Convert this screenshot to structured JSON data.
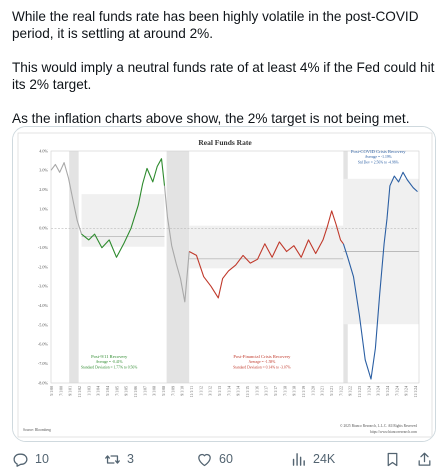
{
  "tweet": {
    "paragraphs": [
      "While the real funds rate has been highly volatile in the post-COVID period, it is settling at around 2%.",
      "This would imply a neutral funds rate of at least 4% if the Fed could hit its 2% target.",
      "As the inflation charts above show, the 2% target is not being met."
    ]
  },
  "actions": {
    "replies": "10",
    "reposts": "3",
    "likes": "60",
    "views": "24K"
  },
  "chart_data": {
    "type": "line",
    "title": "Real Funds Rate",
    "ylim": [
      -8.0,
      4.0
    ],
    "y_ticks": [
      "4.0%",
      "3.0%",
      "2.0%",
      "1.0%",
      "0.0%",
      "-1.0%",
      "-2.0%",
      "-3.0%",
      "-4.0%",
      "-5.0%",
      "-6.0%",
      "-7.0%",
      "-8.0%"
    ],
    "x_ticks": [
      "5/1/00",
      "7/1/00",
      "9/1/01",
      "11/1/02",
      "1/1/03",
      "3/1/04",
      "5/1/04",
      "7/1/05",
      "9/1/05",
      "11/1/06",
      "1/1/07",
      "3/1/08",
      "5/1/08",
      "7/1/09",
      "9/1/10",
      "11/1/11",
      "1/1/12",
      "3/1/12",
      "5/1/13",
      "7/1/14",
      "9/1/14",
      "11/1/15",
      "1/1/16",
      "3/1/17",
      "5/1/17",
      "7/1/18",
      "9/1/18",
      "11/1/19",
      "1/1/20",
      "3/1/21",
      "5/1/21",
      "7/1/22",
      "9/1/22",
      "11/1/23",
      "1/1/24",
      "3/1/24",
      "5/1/24",
      "7/1/24",
      "9/1/24",
      "11/1/24"
    ],
    "x_ticks_truncated": true,
    "recession_shading": true,
    "series": [
      {
        "color": "#a8a8a8",
        "x": [
          2000.0,
          2000.3,
          2000.6,
          2000.9,
          2001.2,
          2001.5,
          2001.8,
          2002.1
        ],
        "values": [
          3.0,
          3.3,
          2.9,
          3.4,
          2.6,
          1.5,
          0.4,
          -0.3
        ]
      },
      {
        "name": "Post-9/11 Recovery",
        "color": "#2e8b2e",
        "x": [
          2002.1,
          2002.6,
          2003.0,
          2003.5,
          2004.0,
          2004.5,
          2005.0,
          2005.5,
          2006.0,
          2006.3,
          2006.6,
          2007.0,
          2007.3,
          2007.6,
          2007.8
        ],
        "values": [
          -0.3,
          -0.6,
          -0.3,
          -1.0,
          -0.6,
          -1.5,
          -0.8,
          0.0,
          1.2,
          2.3,
          3.1,
          2.4,
          3.2,
          3.6,
          2.2
        ]
      },
      {
        "color": "#a8a8a8",
        "x": [
          2007.8,
          2008.0,
          2008.3,
          2008.6,
          2008.9,
          2009.2,
          2009.5
        ],
        "values": [
          2.2,
          0.6,
          -0.9,
          -1.8,
          -2.6,
          -3.8,
          -1.2
        ]
      },
      {
        "name": "Post-Financial Crisis Recovery",
        "color": "#c0392b",
        "x": [
          2009.5,
          2010.0,
          2010.5,
          2011.0,
          2011.5,
          2011.8,
          2012.2,
          2012.7,
          2013.2,
          2013.7,
          2014.2,
          2014.7,
          2015.2,
          2015.7,
          2016.2,
          2016.7,
          2017.2,
          2017.7,
          2018.2,
          2018.7,
          2019.0,
          2019.3,
          2019.6,
          2019.9,
          2020.1
        ],
        "values": [
          -1.2,
          -1.4,
          -2.5,
          -3.0,
          -3.6,
          -2.6,
          -2.2,
          -1.9,
          -1.4,
          -1.8,
          -1.6,
          -0.8,
          -1.5,
          -0.7,
          -1.2,
          -0.9,
          -1.5,
          -0.6,
          -1.3,
          -0.6,
          0.1,
          0.9,
          0.2,
          -0.6,
          -0.8
        ]
      },
      {
        "name": "Post-COVID Crisis Recovery",
        "color": "#2b5fa3",
        "x": [
          2020.1,
          2020.4,
          2020.8,
          2021.2,
          2021.6,
          2022.0,
          2022.3,
          2022.6,
          2022.9,
          2023.1,
          2023.3,
          2023.6,
          2023.9,
          2024.2,
          2024.5,
          2024.9,
          2025.2
        ],
        "values": [
          -0.8,
          -1.5,
          -2.5,
          -4.5,
          -6.8,
          -7.8,
          -6.2,
          -3.4,
          -0.8,
          0.5,
          2.2,
          2.7,
          2.4,
          2.9,
          2.5,
          2.1,
          1.9
        ]
      }
    ],
    "annotations": [
      {
        "label": "Post-9/11 Recovery",
        "lines": [
          "Average = -0.41%",
          "Standard Deviation = 1.77% to 0.56%"
        ]
      },
      {
        "label": "Post-Financial Crisis Recovery",
        "lines": [
          "Average = -1.58%",
          "Standard Deviation = 0.14% to -3.07%"
        ]
      },
      {
        "label": "Post-COVID Crisis Recovery",
        "lines": [
          "Average = -1.19%",
          "Std Dev = 2.56% to -4.96%"
        ]
      }
    ],
    "source": "Source: Bloomberg",
    "copyright": "© 2025 Bianco Research, L.L.C. All Rights Reserved",
    "url": "https://www.biancoresearch.com"
  }
}
